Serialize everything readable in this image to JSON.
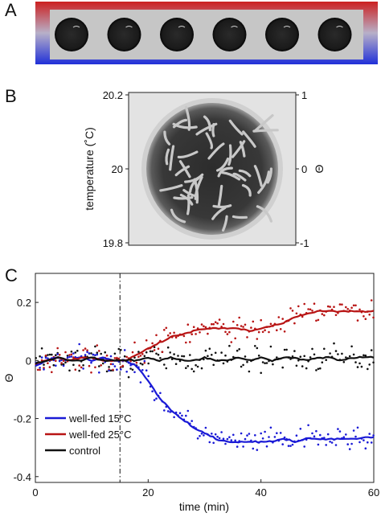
{
  "panels": {
    "a": {
      "letter": "A",
      "well_count": 6
    },
    "b": {
      "letter": "B",
      "left_axis": {
        "label": "temperature (˚C)",
        "ticks": [
          "20.2",
          "20",
          "19.8"
        ]
      },
      "right_axis": {
        "label": "Θ",
        "ticks": [
          "1",
          "0",
          "-1"
        ]
      }
    },
    "c": {
      "letter": "C"
    }
  },
  "colors": {
    "gradient_top": "#cc2020",
    "gradient_bottom": "#2030d8",
    "well_fed_15": "#1a1ad6",
    "well_fed_25": "#b81414",
    "control": "#111111"
  },
  "chart_data": {
    "type": "line",
    "xlabel": "time (min)",
    "ylabel": "Θ",
    "xlim": [
      0,
      60
    ],
    "ylim": [
      -0.42,
      0.3
    ],
    "xticks": [
      0,
      20,
      40,
      60
    ],
    "yticks": [
      0.2,
      0,
      -0.2,
      -0.4
    ],
    "ytick_labels": [
      "0.2",
      "0",
      "-0.2",
      "-0.4"
    ],
    "vline_x": 15,
    "vline_style": "dash-dot",
    "legend_position": "bottom-left",
    "series": [
      {
        "name": "well-fed 15°C",
        "color": "#1a1ad6",
        "x": [
          0,
          2,
          4,
          6,
          8,
          10,
          12,
          14,
          16,
          18,
          20,
          22,
          24,
          26,
          28,
          30,
          32,
          34,
          36,
          38,
          40,
          42,
          44,
          46,
          48,
          50,
          52,
          54,
          56,
          58,
          60
        ],
        "y": [
          -0.02,
          0.0,
          0.01,
          0.0,
          0.01,
          0.0,
          0.01,
          0.0,
          0.0,
          -0.02,
          -0.07,
          -0.13,
          -0.17,
          -0.2,
          -0.23,
          -0.25,
          -0.27,
          -0.28,
          -0.28,
          -0.28,
          -0.28,
          -0.28,
          -0.27,
          -0.28,
          -0.27,
          -0.27,
          -0.27,
          -0.27,
          -0.27,
          -0.265,
          -0.265
        ],
        "scatter_spread": 0.06
      },
      {
        "name": "well-fed 25°C",
        "color": "#b81414",
        "x": [
          0,
          2,
          4,
          6,
          8,
          10,
          12,
          14,
          16,
          18,
          20,
          22,
          24,
          26,
          28,
          30,
          32,
          34,
          36,
          38,
          40,
          42,
          44,
          46,
          48,
          50,
          52,
          54,
          56,
          58,
          60
        ],
        "y": [
          -0.01,
          0.0,
          0.01,
          0.0,
          0.01,
          0.01,
          0.0,
          0.0,
          0.0,
          0.02,
          0.04,
          0.06,
          0.08,
          0.09,
          0.1,
          0.11,
          0.11,
          0.11,
          0.11,
          0.1,
          0.11,
          0.12,
          0.13,
          0.15,
          0.16,
          0.17,
          0.17,
          0.17,
          0.17,
          0.17,
          0.17
        ],
        "scatter_spread": 0.06
      },
      {
        "name": "control",
        "color": "#111111",
        "x": [
          0,
          2,
          4,
          6,
          8,
          10,
          12,
          14,
          16,
          18,
          20,
          22,
          24,
          26,
          28,
          30,
          32,
          34,
          36,
          38,
          40,
          42,
          44,
          46,
          48,
          50,
          52,
          54,
          56,
          58,
          60
        ],
        "y": [
          -0.01,
          0.0,
          0.01,
          0.0,
          0.0,
          0.01,
          0.0,
          0.0,
          0.0,
          0.0,
          0.01,
          0.0,
          0.01,
          0.0,
          0.0,
          0.01,
          0.0,
          0.0,
          0.01,
          0.0,
          0.01,
          0.0,
          0.01,
          0.01,
          0.0,
          0.01,
          0.01,
          0.0,
          0.01,
          0.01,
          0.01
        ],
        "scatter_spread": 0.07
      }
    ]
  }
}
